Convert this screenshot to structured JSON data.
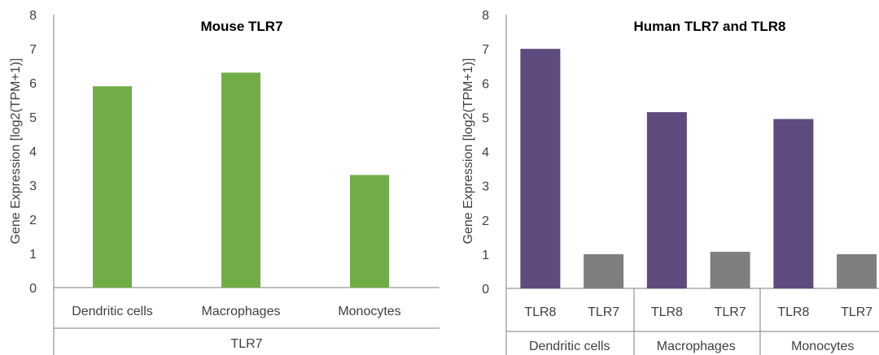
{
  "charts": [
    {
      "title": "Mouse TLR7",
      "ylabel": "Gene Expression [log2(TPM+1)]",
      "ylim": [
        0,
        8
      ],
      "yticks": [
        "0",
        "1",
        "2",
        "3",
        "4",
        "5",
        "6",
        "7",
        "8"
      ],
      "group_label": "TLR7"
    },
    {
      "title": "Human TLR7 and TLR8",
      "ylabel": "Gene Expression [log2(TPM+1)]",
      "ylim": [
        0,
        8
      ],
      "yticks": [
        "0",
        "1",
        "2",
        "3",
        "4",
        "5",
        "6",
        "7",
        "8"
      ]
    }
  ],
  "chart_data": [
    {
      "type": "bar",
      "title": "Mouse TLR7",
      "ylabel": "Gene Expression [log2(TPM+1)]",
      "ylim": [
        0,
        8
      ],
      "grid": false,
      "categories": [
        "Dendritic cells",
        "Macrophages",
        "Monocytes"
      ],
      "group": "TLR7",
      "values": [
        5.9,
        6.3,
        3.3
      ],
      "color": "#70ad47"
    },
    {
      "type": "bar",
      "title": "Human TLR7 and TLR8",
      "ylabel": "Gene Expression [log2(TPM+1)]",
      "ylim": [
        0,
        8
      ],
      "grid": false,
      "groups": [
        {
          "name": "Dendritic cells",
          "bars": [
            {
              "label": "TLR8",
              "value": 7.0
            },
            {
              "label": "TLR7",
              "value": 1.0
            }
          ]
        },
        {
          "name": "Macrophages",
          "bars": [
            {
              "label": "TLR8",
              "value": 5.15
            },
            {
              "label": "TLR7",
              "value": 1.07
            }
          ]
        },
        {
          "name": "Monocytes",
          "bars": [
            {
              "label": "TLR8",
              "value": 4.95
            },
            {
              "label": "TLR7",
              "value": 1.0
            }
          ]
        }
      ],
      "colors": {
        "TLR8": "#5f4b7e",
        "TLR7": "#7f7f7f"
      }
    }
  ]
}
